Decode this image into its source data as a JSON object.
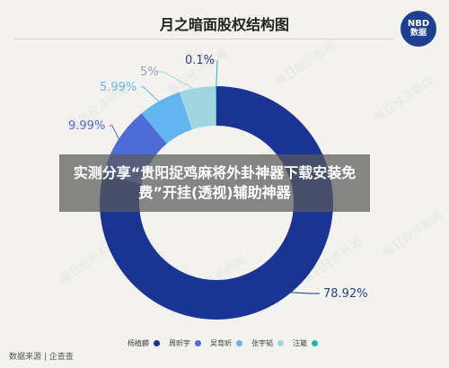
{
  "header": {
    "title": "月之暗面股权结构图",
    "logo_line1": "NBD",
    "logo_line2": "数据"
  },
  "overlay": {
    "banner_text": "实测分享“贵阳捉鸡麻将外卦神器下载安装免费”开挂(透视)辅助神器"
  },
  "watermark_text": "每日经济新闻",
  "footer": {
    "source": "数据来源 | 企查查"
  },
  "colors": {
    "background": "#f3f2ee",
    "slice_1": "#1a3494",
    "slice_2": "#4f6bd6",
    "slice_3": "#63b5f0",
    "slice_4": "#9fd6e0",
    "slice_5": "#28b4b4",
    "banner": "rgba(90,90,90,0.72)"
  },
  "chart_data": {
    "type": "pie",
    "title": "月之暗面股权结构图",
    "categories": [
      "杨植麟",
      "周昕宇",
      "吴育昕",
      "张宇韬",
      "汪箴"
    ],
    "values": [
      78.92,
      9.99,
      5.99,
      5,
      0.1
    ],
    "data_labels": [
      "78.92%",
      "9.99%",
      "5.99%",
      "5%",
      "0.1%"
    ],
    "colors": [
      "#1a3494",
      "#4f6bd6",
      "#63b5f0",
      "#9fd6e0",
      "#28b4b4"
    ],
    "donut": true,
    "legend_position": "bottom"
  }
}
